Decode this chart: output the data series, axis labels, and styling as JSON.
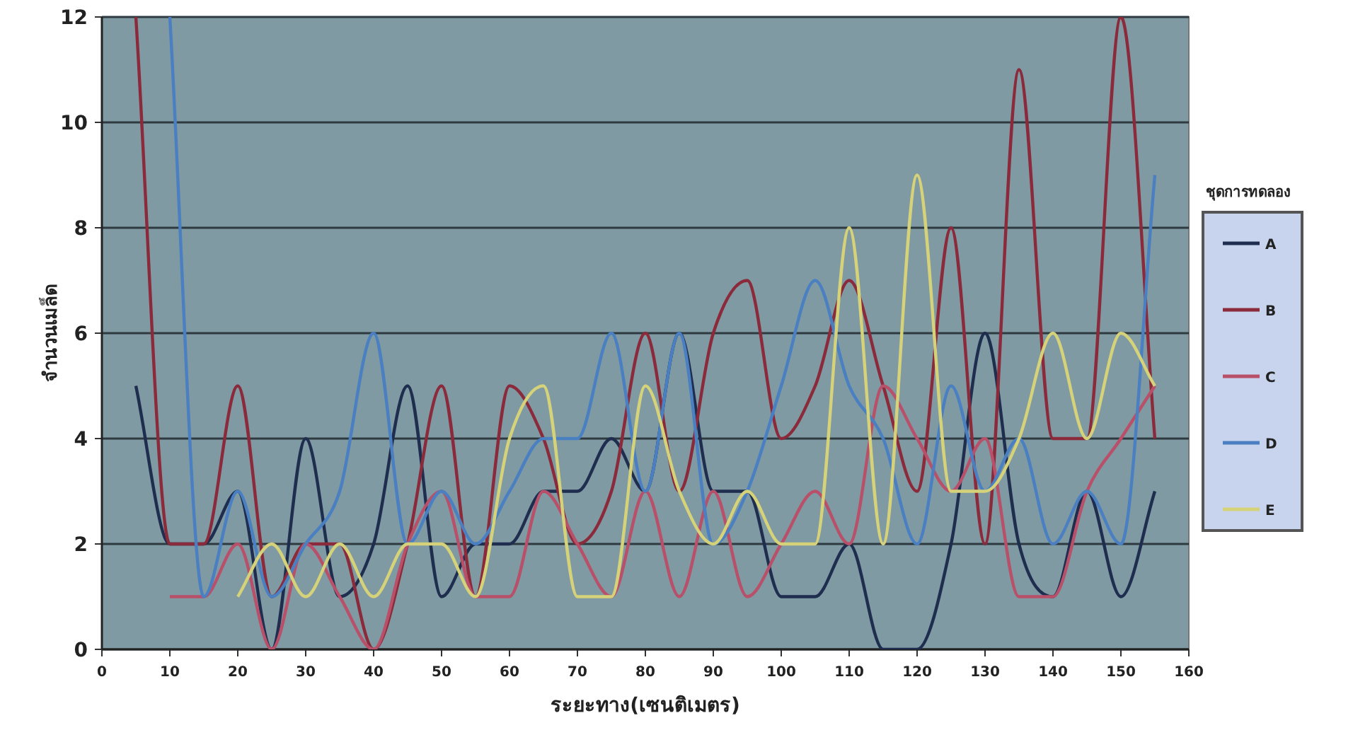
{
  "chart_data": {
    "type": "line",
    "xlabel": "ระยะทาง(เซนติเมตร)",
    "ylabel": "จำนวนเมล็ด",
    "legend_title": "ชุดการทดลอง",
    "x": [
      5,
      10,
      15,
      20,
      25,
      30,
      35,
      40,
      45,
      50,
      55,
      60,
      65,
      70,
      75,
      80,
      85,
      90,
      95,
      100,
      105,
      110,
      115,
      120,
      125,
      130,
      135,
      140,
      145,
      150,
      155
    ],
    "series": [
      {
        "name": "A",
        "color": "#1f2d4f",
        "values": [
          5,
          2,
          2,
          3,
          0,
          4,
          1,
          2,
          5,
          1,
          2,
          2,
          3,
          3,
          4,
          3,
          6,
          3,
          3,
          1,
          1,
          2,
          0,
          0,
          2,
          6,
          2,
          1,
          3,
          1,
          3
        ]
      },
      {
        "name": "B",
        "color": "#8b2a3a",
        "values": [
          12,
          2,
          2,
          5,
          1,
          2,
          2,
          0,
          2,
          5,
          1,
          5,
          4,
          2,
          3,
          6,
          3,
          6,
          7,
          4,
          5,
          7,
          5,
          3,
          8,
          2,
          11,
          4,
          4,
          12,
          4
        ]
      },
      {
        "name": "C",
        "color": "#b8506a",
        "values": [
          null,
          1,
          1,
          2,
          0,
          2,
          1,
          0,
          2,
          3,
          1,
          1,
          3,
          2,
          1,
          3,
          1,
          3,
          1,
          2,
          3,
          2,
          5,
          4,
          3,
          4,
          1,
          1,
          3,
          4,
          5
        ]
      },
      {
        "name": "D",
        "color": "#4a7fc1",
        "values": [
          null,
          12,
          1,
          3,
          1,
          2,
          3,
          6,
          2,
          3,
          2,
          3,
          4,
          4,
          6,
          3,
          6,
          2,
          3,
          5,
          7,
          5,
          4,
          2,
          5,
          3,
          4,
          2,
          3,
          2,
          9
        ]
      },
      {
        "name": "E",
        "color": "#d6d27a",
        "values": [
          null,
          null,
          null,
          1,
          2,
          1,
          2,
          1,
          2,
          2,
          1,
          4,
          5,
          1,
          1,
          5,
          3,
          2,
          3,
          2,
          2,
          8,
          2,
          9,
          3,
          3,
          4,
          6,
          4,
          6,
          5
        ]
      }
    ],
    "xlim": [
      0,
      160
    ],
    "xticks": [
      0,
      10,
      20,
      30,
      40,
      50,
      60,
      70,
      80,
      90,
      100,
      110,
      120,
      130,
      140,
      150,
      160
    ],
    "ylim": [
      0,
      12
    ],
    "yticks": [
      0,
      2,
      4,
      6,
      8,
      10,
      12
    ],
    "grid": "y",
    "legend": "right",
    "marker": "none",
    "line_style": "solid"
  }
}
